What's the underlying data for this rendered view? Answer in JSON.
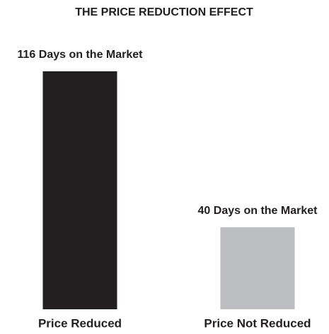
{
  "chart_data": {
    "type": "bar",
    "title": "THE PRICE REDUCTION EFFECT",
    "categories": [
      "Price Reduced",
      "Price Not Reduced"
    ],
    "values": [
      116,
      40
    ],
    "value_labels": [
      "116 Days on the Market",
      "40 Days on the Market"
    ],
    "colors": [
      "#231f20",
      "#bcbdc0"
    ]
  }
}
